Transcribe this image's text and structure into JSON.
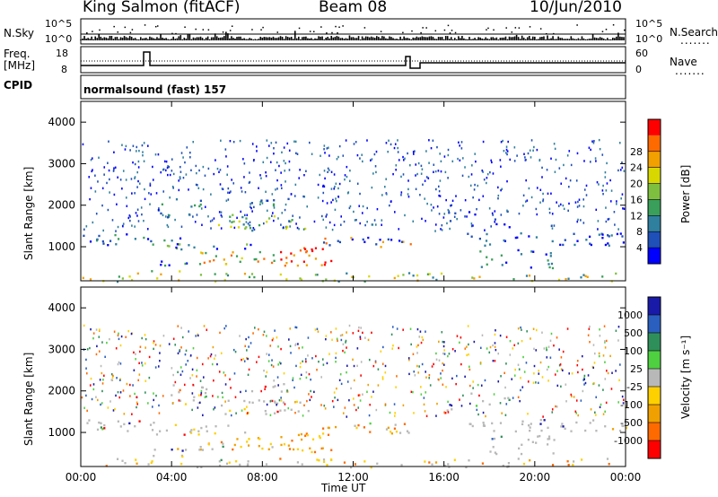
{
  "header": {
    "station": "King Salmon (fitACF)",
    "beam": "Beam 08",
    "date": "10/Jun/2010"
  },
  "side_labels": {
    "nsky": "N.Sky",
    "nsearch": "N.Search",
    "freq": "Freq.",
    "freq_unit": "[MHz]",
    "nave": "Nave",
    "cpid": "CPID",
    "dots": "......."
  },
  "mini_ticks": {
    "nsky_left": [
      "10^5",
      "10^0"
    ],
    "nsky_right": [
      "10^5",
      "10^0"
    ],
    "freq_left": [
      "18",
      "8"
    ],
    "freq_right": [
      "60",
      "0"
    ]
  },
  "cpid_text": "normalsound (fast) 157",
  "colors": {
    "power": [
      "#0000ff",
      "#1f4fb8",
      "#2f7f9f",
      "#3a9f5a",
      "#7fbf3f",
      "#d8d800",
      "#f2a000",
      "#ff6a00",
      "#ff0000"
    ],
    "velocity": [
      "#1a1aa8",
      "#2a5fc0",
      "#2f8f5a",
      "#4fd040",
      "#b8b8b8",
      "#ffd000",
      "#f0a000",
      "#ff6a00",
      "#ff0000"
    ]
  },
  "chart_data": [
    {
      "type": "heatmap",
      "title": "",
      "xlabel": "",
      "ylabel": "Slant Range [km]",
      "x_ticks": [
        "00:00",
        "04:00",
        "08:00",
        "12:00",
        "16:00",
        "20:00",
        "00:00"
      ],
      "xlim_hours": [
        0,
        24
      ],
      "ylim_km": [
        180,
        4500
      ],
      "y_ticks": [
        1000,
        2000,
        3000,
        4000
      ],
      "colorbar": {
        "label": "Power [dB]",
        "ticks": [
          "4",
          "8",
          "12",
          "16",
          "20",
          "24",
          "28"
        ],
        "range": [
          0,
          30
        ]
      }
    },
    {
      "type": "heatmap",
      "title": "",
      "xlabel": "Time UT",
      "ylabel": "Slant Range [km]",
      "x_ticks": [
        "00:00",
        "04:00",
        "08:00",
        "12:00",
        "16:00",
        "20:00",
        "00:00"
      ],
      "xlim_hours": [
        0,
        24
      ],
      "ylim_km": [
        180,
        4500
      ],
      "y_ticks": [
        1000,
        2000,
        3000,
        4000
      ],
      "colorbar": {
        "label": "Velocity [m s⁻¹]",
        "ticks": [
          "1000",
          "500",
          "100",
          "25",
          "-25",
          "-100",
          "-500",
          "-1000"
        ]
      }
    }
  ]
}
